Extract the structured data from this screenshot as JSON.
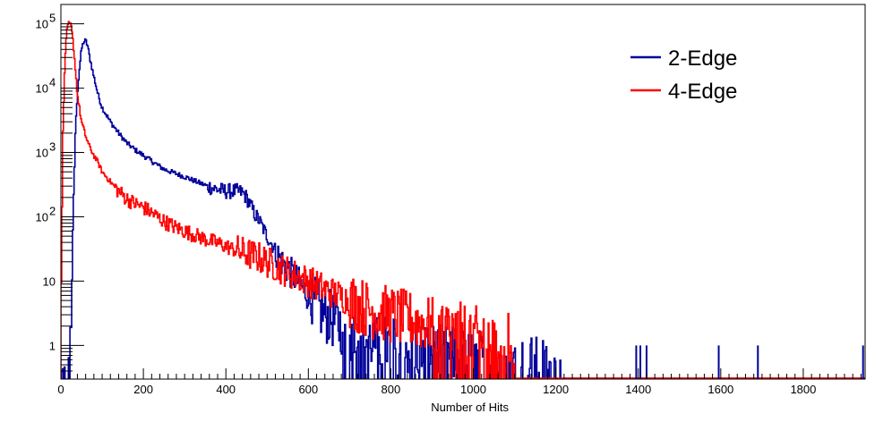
{
  "chart_data": {
    "type": "line",
    "title": "",
    "xlabel": "Number of Hits",
    "ylabel": "",
    "xlim": [
      0,
      1950
    ],
    "ylim": [
      0.3,
      200000
    ],
    "yscale": "log",
    "grid": false,
    "legend_position": "top-right",
    "x_ticks": [
      0,
      200,
      400,
      600,
      800,
      1000,
      1200,
      1400,
      1600,
      1800
    ],
    "y_ticks": [
      {
        "value": 1,
        "label": "1"
      },
      {
        "value": 10,
        "label": "10"
      },
      {
        "value": 100,
        "label": "10",
        "exp": "2"
      },
      {
        "value": 1000,
        "label": "10",
        "exp": "3"
      },
      {
        "value": 10000,
        "label": "10",
        "exp": "4"
      },
      {
        "value": 100000,
        "label": "10",
        "exp": "5"
      }
    ],
    "series": [
      {
        "name": "2-Edge",
        "color": "#000099",
        "x": [
          0,
          20,
          25,
          30,
          35,
          40,
          45,
          50,
          55,
          60,
          65,
          70,
          80,
          90,
          100,
          120,
          140,
          160,
          180,
          200,
          225,
          250,
          275,
          300,
          325,
          350,
          375,
          400,
          425,
          440,
          450,
          460,
          470,
          480,
          500,
          520,
          540,
          560,
          580,
          600,
          620,
          640,
          660,
          680,
          700,
          750,
          800,
          850,
          900,
          950,
          1000,
          1050,
          1100,
          1150,
          1200,
          1220
        ],
        "y": [
          0.3,
          0.3,
          3,
          100,
          2000,
          8000,
          20000,
          40000,
          52000,
          55000,
          45000,
          30000,
          15000,
          8000,
          5000,
          3000,
          2000,
          1400,
          1100,
          900,
          700,
          550,
          480,
          420,
          360,
          310,
          270,
          250,
          250,
          240,
          200,
          150,
          110,
          90,
          50,
          30,
          18,
          13,
          9,
          6,
          4,
          3,
          2.5,
          2,
          1.5,
          1.2,
          1,
          0.9,
          0.8,
          0.7,
          0.65,
          0.6,
          0.55,
          0.5,
          0.45,
          0.4
        ]
      },
      {
        "name": "4-Edge",
        "color": "#ff0000",
        "x": [
          0,
          5,
          10,
          15,
          20,
          25,
          30,
          35,
          40,
          50,
          60,
          70,
          80,
          90,
          100,
          120,
          140,
          160,
          180,
          200,
          225,
          250,
          275,
          300,
          325,
          350,
          375,
          400,
          425,
          450,
          475,
          500,
          550,
          600,
          650,
          700,
          750,
          800,
          850,
          900,
          950,
          1000,
          1050,
          1100
        ],
        "y": [
          5,
          2000,
          30000,
          80000,
          105000,
          90000,
          50000,
          20000,
          8000,
          3000,
          1800,
          1200,
          900,
          700,
          500,
          350,
          250,
          190,
          160,
          140,
          110,
          85,
          70,
          60,
          52,
          45,
          40,
          35,
          30,
          27,
          24,
          20,
          14,
          10,
          7,
          5,
          3.5,
          3,
          2.5,
          2,
          1.8,
          1.5,
          1.3,
          1.1
        ]
      }
    ],
    "isolated_hits": [
      {
        "series": "2-Edge",
        "x": 1395,
        "y": 1
      },
      {
        "series": "2-Edge",
        "x": 1405,
        "y": 1
      },
      {
        "series": "2-Edge",
        "x": 1420,
        "y": 1
      },
      {
        "series": "2-Edge",
        "x": 1595,
        "y": 1
      },
      {
        "series": "2-Edge",
        "x": 1690,
        "y": 1
      },
      {
        "series": "2-Edge",
        "x": 1945,
        "y": 1
      }
    ]
  }
}
